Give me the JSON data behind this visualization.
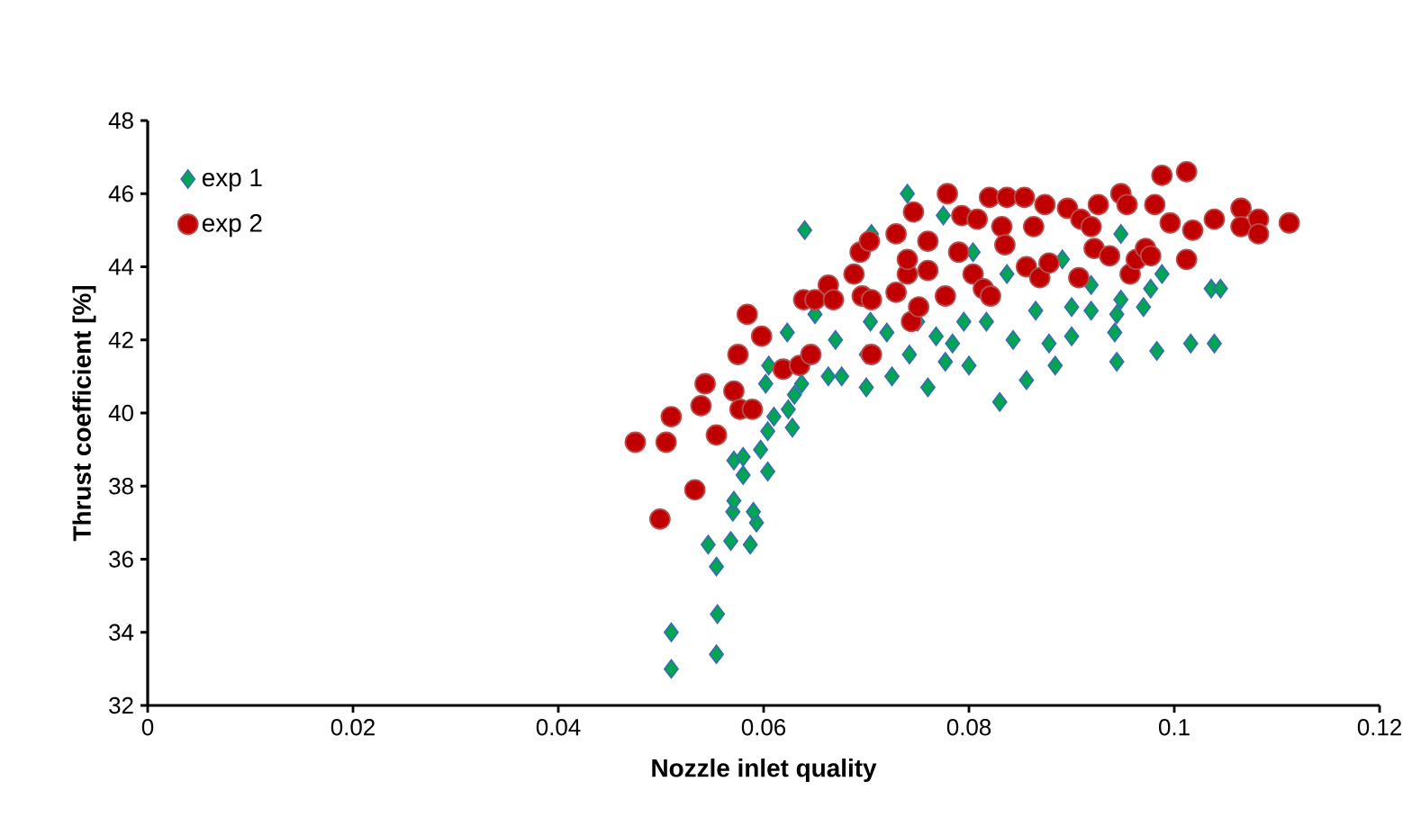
{
  "chart_data": {
    "type": "scatter",
    "xlabel": "Nozzle inlet quality",
    "ylabel": "Thrust coefficient [%]",
    "xlim": [
      0,
      0.12
    ],
    "xticks": [
      0,
      0.02,
      0.04,
      0.06,
      0.08,
      0.1,
      0.12
    ],
    "ylim": [
      32,
      48
    ],
    "yticks": [
      32,
      34,
      36,
      38,
      40,
      42,
      44,
      46,
      48
    ],
    "grid": false,
    "legend": "top left",
    "series": [
      {
        "name": "exp 1",
        "color": "#00a651",
        "marker": "diamond",
        "x": [
          0.051,
          0.051,
          0.0554,
          0.0555,
          0.0554,
          0.0546,
          0.0568,
          0.0587,
          0.057,
          0.0571,
          0.0593,
          0.059,
          0.0571,
          0.058,
          0.058,
          0.0604,
          0.0597,
          0.0604,
          0.061,
          0.0602,
          0.0628,
          0.0624,
          0.063,
          0.0637,
          0.0623,
          0.0605,
          0.064,
          0.065,
          0.0663,
          0.067,
          0.0676,
          0.07,
          0.07,
          0.0704,
          0.0705,
          0.0725,
          0.072,
          0.074,
          0.0742,
          0.075,
          0.076,
          0.0768,
          0.0777,
          0.0784,
          0.0795,
          0.08,
          0.0775,
          0.0804,
          0.0817,
          0.083,
          0.0837,
          0.0843,
          0.0856,
          0.0865,
          0.0878,
          0.0884,
          0.0891,
          0.09,
          0.09,
          0.0919,
          0.0919,
          0.0944,
          0.0942,
          0.0944,
          0.0948,
          0.0948,
          0.097,
          0.0977,
          0.0983,
          0.0988,
          0.1016,
          0.1036,
          0.1045,
          0.1039
        ],
        "values": [
          33.0,
          34.0,
          33.4,
          34.5,
          35.8,
          36.4,
          36.5,
          36.4,
          37.3,
          37.6,
          37.0,
          37.3,
          38.7,
          38.8,
          38.3,
          38.4,
          39.0,
          39.5,
          39.9,
          40.8,
          39.6,
          40.1,
          40.5,
          40.8,
          42.2,
          41.3,
          45.0,
          42.7,
          41.0,
          42.0,
          41.0,
          40.7,
          41.6,
          42.5,
          44.9,
          41.0,
          42.2,
          46.0,
          41.6,
          42.5,
          40.7,
          42.1,
          41.4,
          41.9,
          42.5,
          41.3,
          45.4,
          44.4,
          42.5,
          40.3,
          43.8,
          42.0,
          40.9,
          42.8,
          41.9,
          41.3,
          44.2,
          42.9,
          42.1,
          42.8,
          43.5,
          41.4,
          42.2,
          42.7,
          43.1,
          44.9,
          42.9,
          43.4,
          41.7,
          43.8,
          41.9,
          43.4,
          43.4,
          41.9
        ]
      },
      {
        "name": "exp 2",
        "color": "#c00000",
        "marker": "circle",
        "x": [
          0.0475,
          0.0505,
          0.051,
          0.0499,
          0.0533,
          0.0539,
          0.0543,
          0.0554,
          0.0571,
          0.0575,
          0.0577,
          0.0589,
          0.0584,
          0.0598,
          0.0619,
          0.0635,
          0.0646,
          0.0639,
          0.065,
          0.0663,
          0.0668,
          0.0688,
          0.0694,
          0.0696,
          0.0705,
          0.0705,
          0.0703,
          0.0729,
          0.0729,
          0.074,
          0.074,
          0.0744,
          0.0746,
          0.0751,
          0.076,
          0.076,
          0.0777,
          0.0779,
          0.079,
          0.0793,
          0.0804,
          0.0808,
          0.0814,
          0.0821,
          0.082,
          0.0832,
          0.0835,
          0.0837,
          0.0854,
          0.0856,
          0.0863,
          0.0869,
          0.0874,
          0.0878,
          0.0896,
          0.0907,
          0.0909,
          0.0919,
          0.0922,
          0.0926,
          0.0937,
          0.0948,
          0.0954,
          0.0957,
          0.0963,
          0.0972,
          0.0981,
          0.0977,
          0.0988,
          0.0996,
          0.1012,
          0.1012,
          0.1018,
          0.1039,
          0.1065,
          0.1065,
          0.1082,
          0.1082,
          0.1112
        ],
        "values": [
          39.2,
          39.2,
          39.9,
          37.1,
          37.9,
          40.2,
          40.8,
          39.4,
          40.6,
          41.6,
          40.1,
          40.1,
          42.7,
          42.1,
          41.2,
          41.3,
          41.6,
          43.1,
          43.1,
          43.5,
          43.1,
          43.8,
          44.4,
          43.2,
          43.1,
          41.6,
          44.7,
          44.9,
          43.3,
          43.8,
          44.2,
          42.5,
          45.5,
          42.9,
          44.7,
          43.9,
          43.2,
          46.0,
          44.4,
          45.4,
          43.8,
          45.3,
          43.4,
          43.2,
          45.9,
          45.1,
          44.6,
          45.9,
          45.9,
          44.0,
          45.1,
          43.7,
          45.7,
          44.1,
          45.6,
          43.7,
          45.3,
          45.1,
          44.5,
          45.7,
          44.3,
          46.0,
          45.7,
          43.8,
          44.2,
          44.5,
          45.7,
          44.3,
          46.5,
          45.2,
          44.2,
          46.6,
          45.0,
          45.3,
          45.6,
          45.1,
          45.3,
          44.9,
          45.2
        ]
      }
    ]
  }
}
